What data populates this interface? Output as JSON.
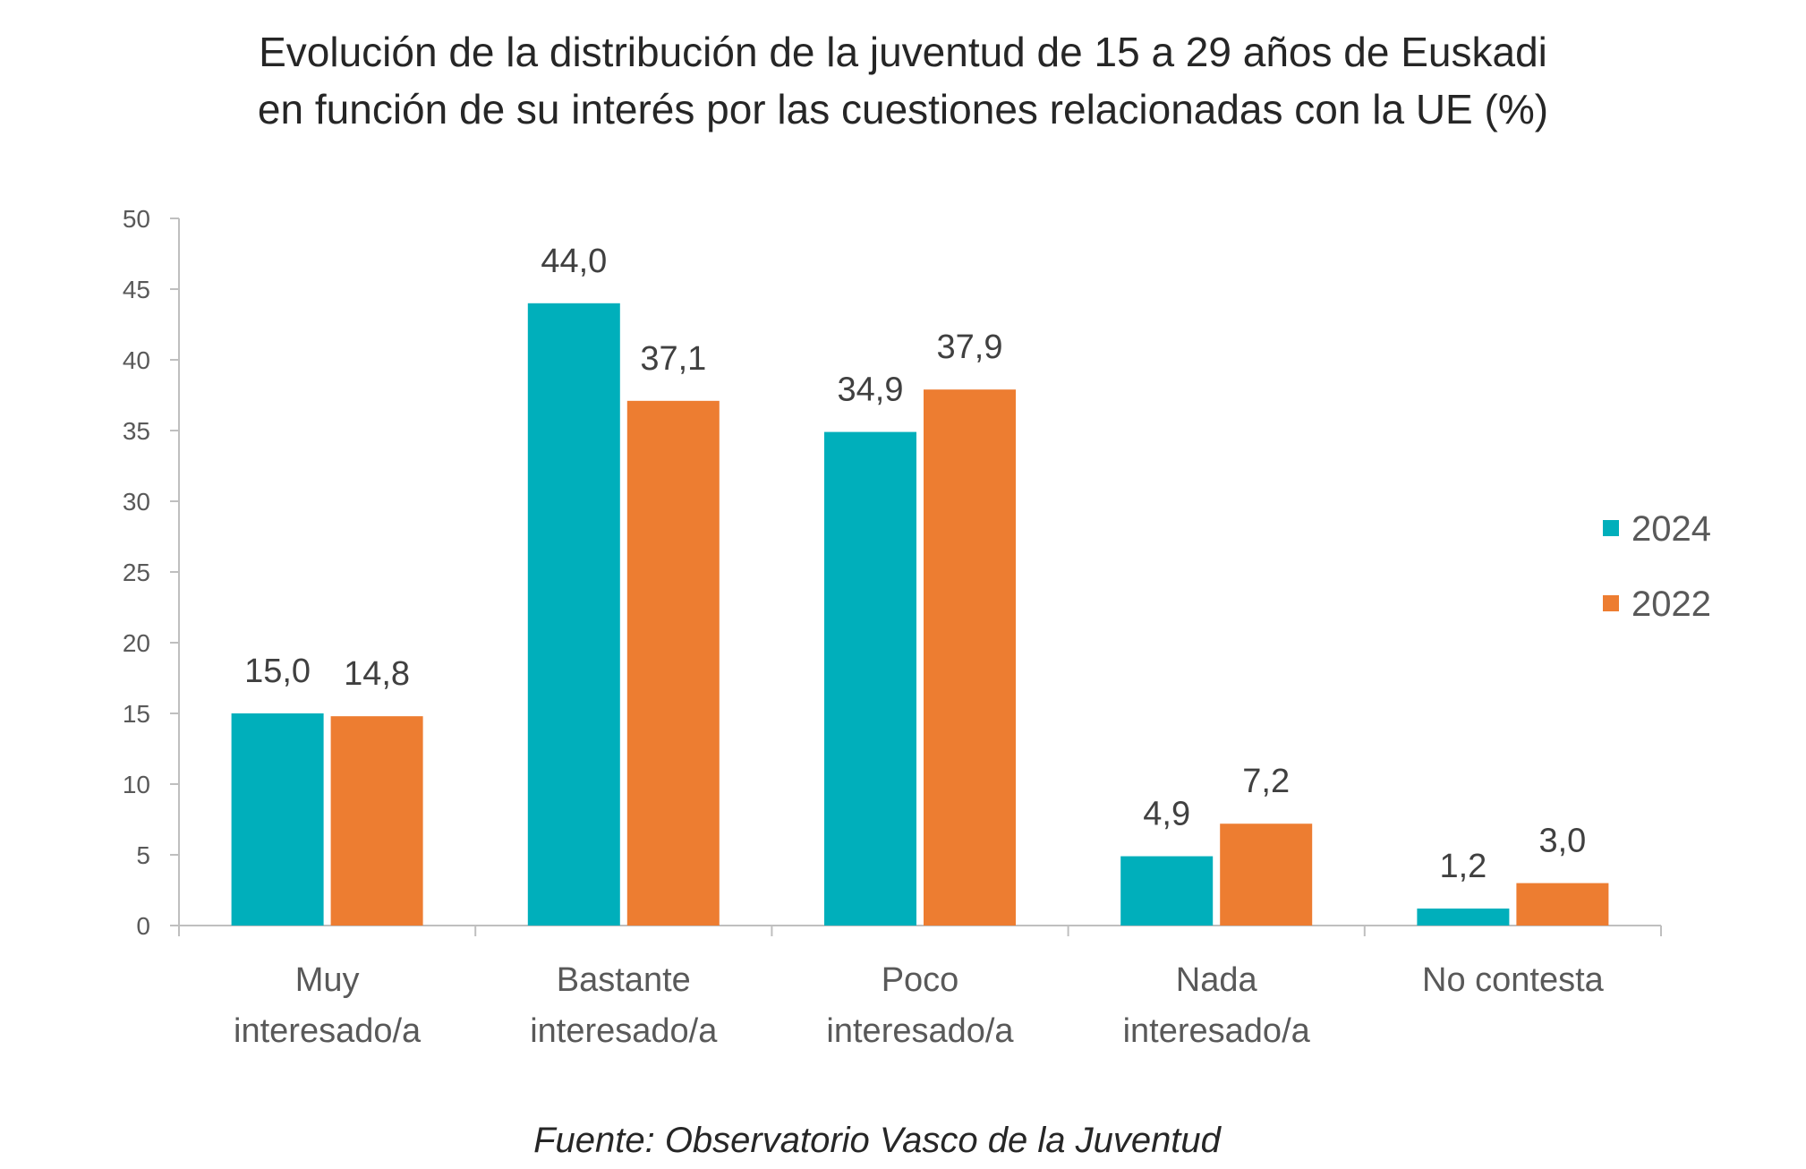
{
  "title_lines": [
    "Evolución de la distribución de la juventud de 15 a 29 años de Euskadi",
    "en función de su interés por las cuestiones relacionadas con la UE (%)"
  ],
  "source": "Fuente: Observatorio Vasco de la Juventud",
  "colors": {
    "2024": "#00AFBB",
    "2022": "#ED7D31",
    "axis": "#BFBFBF"
  },
  "chart_data": {
    "type": "bar",
    "title": "Evolución de la distribución de la juventud de 15 a 29 años de Euskadi en función de su interés por las cuestiones relacionadas con la UE (%)",
    "categories": [
      [
        "Muy",
        "interesado/a"
      ],
      [
        "Bastante",
        "interesado/a"
      ],
      [
        "Poco",
        "interesado/a"
      ],
      [
        "Nada",
        "interesado/a"
      ],
      [
        "No contesta"
      ]
    ],
    "series": [
      {
        "name": "2024",
        "values": [
          15.0,
          44.0,
          34.9,
          4.9,
          1.2
        ],
        "labels": [
          "15,0",
          "44,0",
          "34,9",
          "4,9",
          "1,2"
        ]
      },
      {
        "name": "2022",
        "values": [
          14.8,
          37.1,
          37.9,
          7.2,
          3.0
        ],
        "labels": [
          "14,8",
          "37,1",
          "37,9",
          "7,2",
          "3,0"
        ]
      }
    ],
    "yticks": [
      "0",
      "5",
      "10",
      "15",
      "20",
      "25",
      "30",
      "35",
      "40",
      "45",
      "50"
    ],
    "ylim": [
      0,
      50
    ],
    "xlabel": "",
    "ylabel": "",
    "grid": false,
    "legend_position": "right"
  }
}
